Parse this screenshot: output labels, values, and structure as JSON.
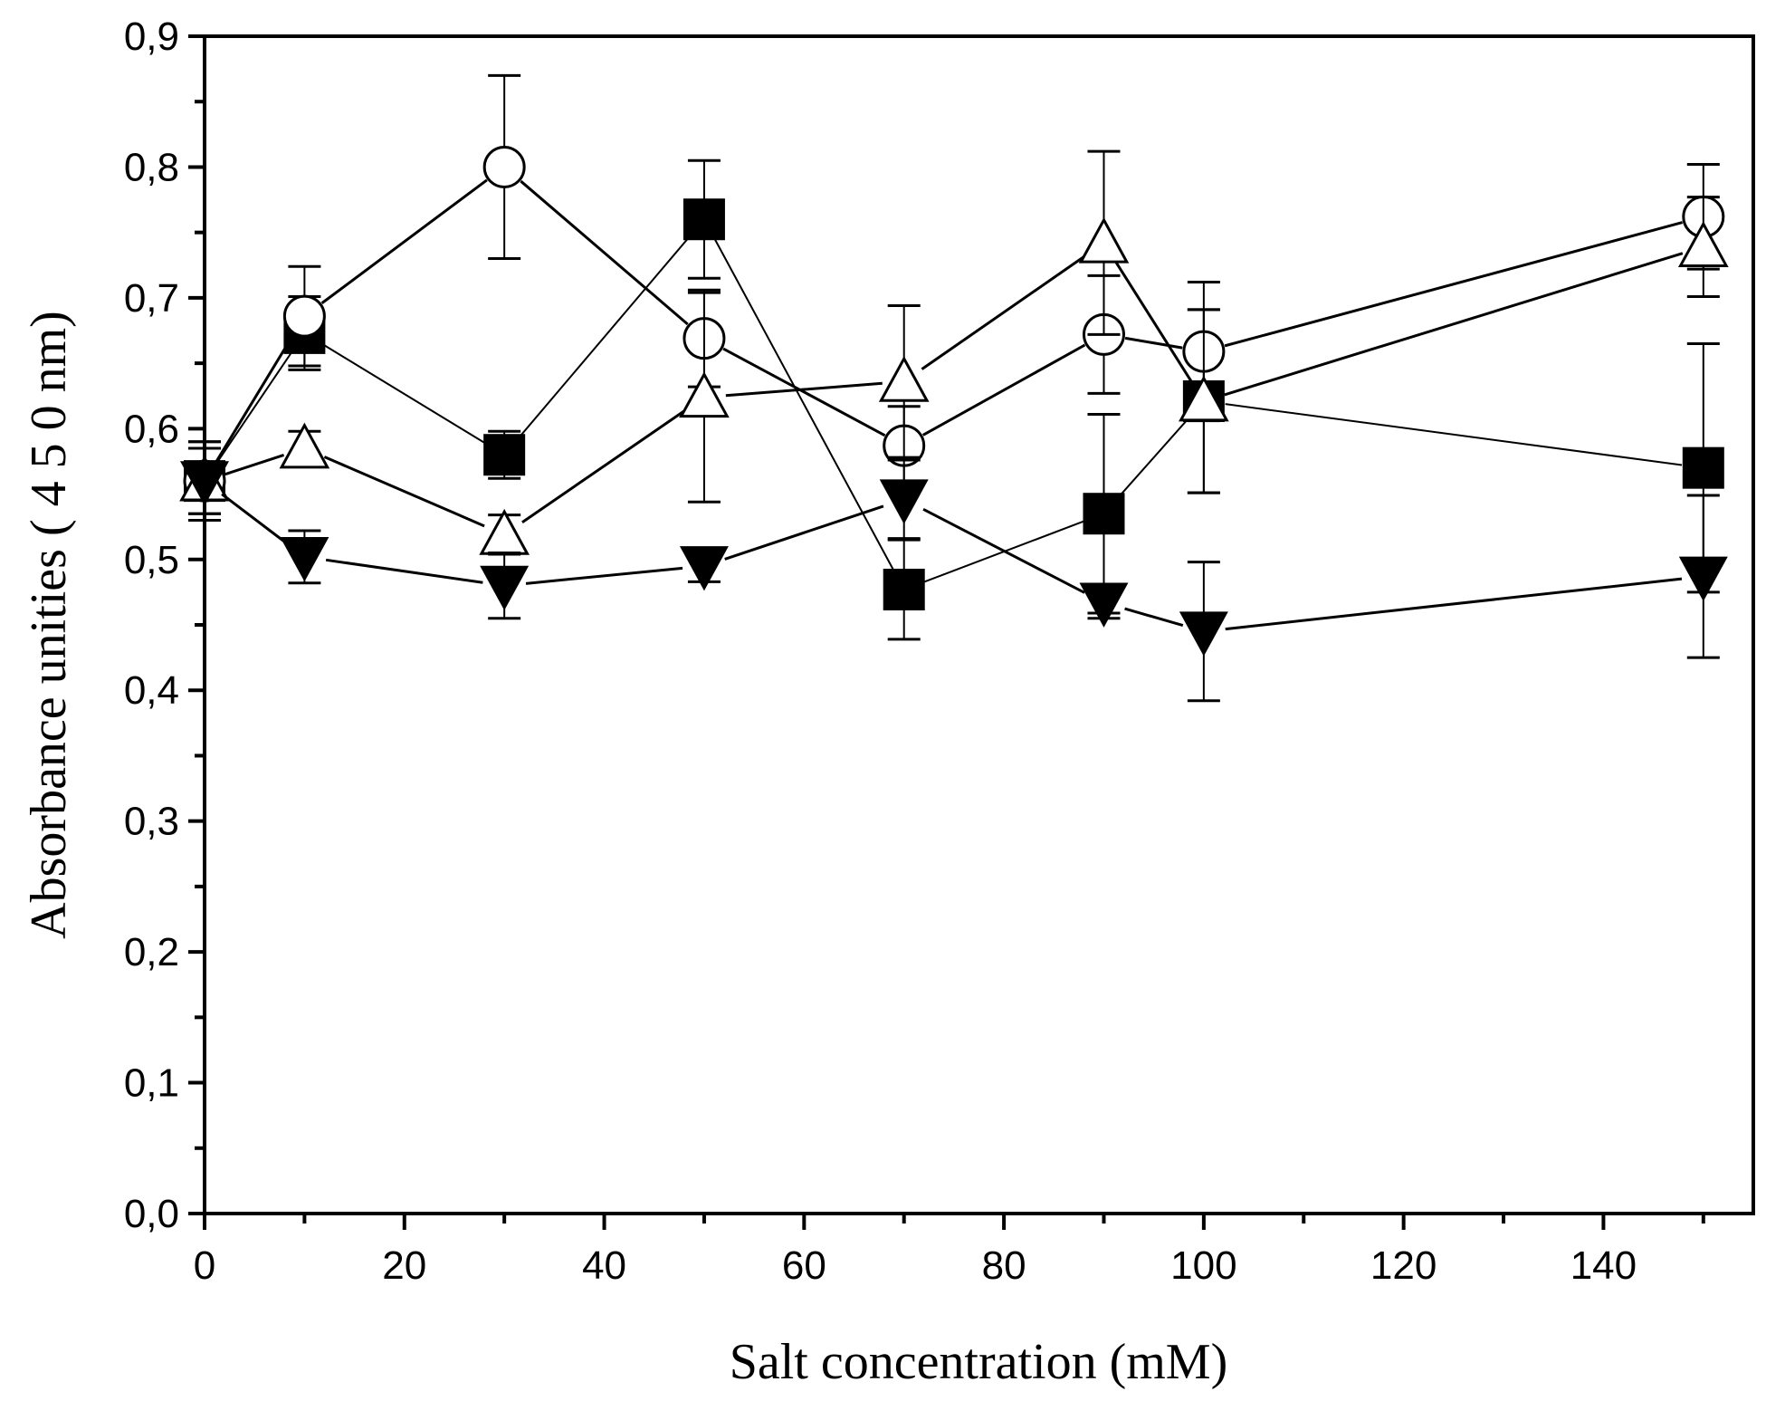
{
  "chart_data": {
    "type": "scatter",
    "title": "",
    "xlabel": "Salt concentration (mM)",
    "ylabel": "Absorbance unities ( 4 5 0 nm)",
    "xlim": [
      0,
      155
    ],
    "ylim": [
      0,
      0.9
    ],
    "x_ticks": [
      0,
      20,
      40,
      60,
      80,
      100,
      120,
      140
    ],
    "x_tick_labels": [
      "0",
      "20",
      "40",
      "60",
      "80",
      "100",
      "120",
      "140"
    ],
    "y_ticks": [
      0,
      0.1,
      0.2,
      0.3,
      0.4,
      0.5,
      0.6,
      0.7,
      0.8,
      0.9
    ],
    "y_tick_labels": [
      "0,0",
      "0,1",
      "0,2",
      "0,3",
      "0,4",
      "0,5",
      "0,6",
      "0,7",
      "0,8",
      "0,9"
    ],
    "grid": false,
    "legend": "none",
    "series": [
      {
        "name": "filled square",
        "marker": "square-filled",
        "color": "#000000",
        "x": [
          0,
          10,
          30,
          50,
          70,
          90,
          100,
          150
        ],
        "y": [
          0.56,
          0.673,
          0.58,
          0.76,
          0.477,
          0.535,
          0.621,
          0.57
        ],
        "err": [
          0.03,
          0.028,
          0.018,
          0.045,
          0.038,
          0.076,
          0.07,
          0.095
        ]
      },
      {
        "name": "open circle",
        "marker": "circle-open",
        "color": "#000000",
        "x": [
          0,
          10,
          30,
          50,
          70,
          90,
          100,
          150
        ],
        "y": [
          0.56,
          0.686,
          0.8,
          0.669,
          0.587,
          0.672,
          0.659,
          0.762
        ],
        "err": [
          0.03,
          0.038,
          0.07,
          0.037,
          0.03,
          0.045,
          0.053,
          0.04
        ]
      },
      {
        "name": "open triangle up",
        "marker": "triangle-up-open",
        "color": "#000000",
        "x": [
          0,
          10,
          30,
          50,
          70,
          90,
          100,
          150
        ],
        "y": [
          0.56,
          0.585,
          0.519,
          0.624,
          0.636,
          0.742,
          0.621,
          0.739
        ],
        "err": [
          0.025,
          0.013,
          0.015,
          0.08,
          0.058,
          0.07,
          0.07,
          0.038
        ]
      },
      {
        "name": "filled triangle down",
        "marker": "triangle-down-filled",
        "color": "#000000",
        "x": [
          0,
          10,
          30,
          50,
          70,
          90,
          100,
          150
        ],
        "y": [
          0.56,
          0.502,
          0.48,
          0.495,
          0.546,
          0.467,
          0.445,
          0.487
        ],
        "err": [
          0.025,
          0.02,
          0.025,
          0.012,
          0.03,
          0.012,
          0.053,
          0.062
        ]
      }
    ]
  }
}
